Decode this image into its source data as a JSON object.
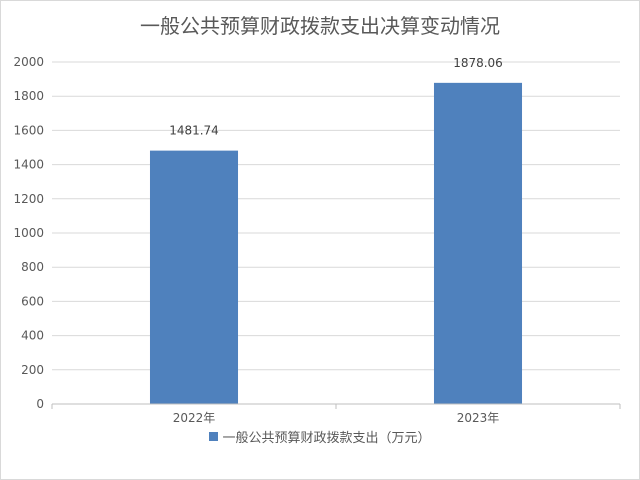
{
  "chart_data": {
    "type": "bar",
    "title": "一般公共预算财政拨款支出决算变动情况",
    "categories": [
      "2022年",
      "2023年"
    ],
    "series": [
      {
        "name": "一般公共预算财政拨款支出（万元）",
        "values": [
          1481.74,
          1878.06
        ],
        "data_labels": [
          "1481.74",
          "1878.06"
        ],
        "color": "#4f81bd"
      }
    ],
    "ylim": [
      0,
      2000
    ],
    "yticks": [
      "0",
      "200",
      "400",
      "600",
      "800",
      "1000",
      "1200",
      "1400",
      "1600",
      "1800",
      "2000"
    ],
    "grid": true,
    "legend_position": "bottom"
  }
}
